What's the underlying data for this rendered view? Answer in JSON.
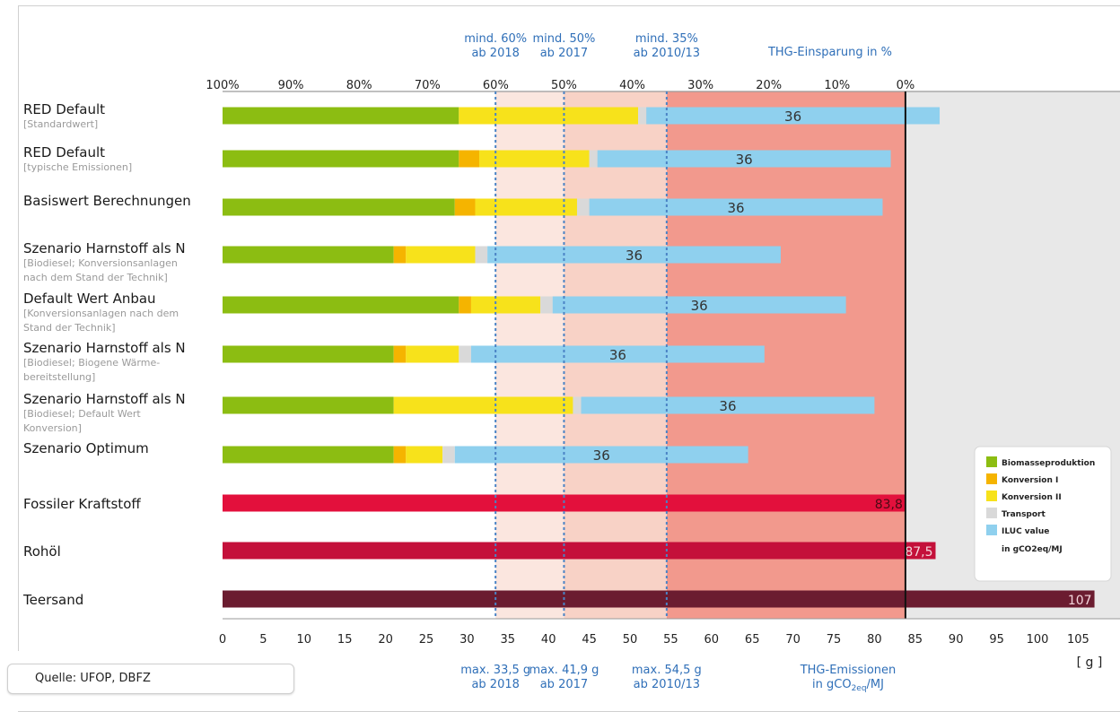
{
  "chart_data": {
    "type": "bar",
    "orientation": "horizontal",
    "stacked": true,
    "x_axis_label": "THG-Emissionen in gCO2eq/MJ",
    "x_unit_label": "[ g ]",
    "x_ticks": [
      "0",
      "5",
      "10",
      "15",
      "20",
      "25",
      "30",
      "35",
      "40",
      "45",
      "50",
      "55",
      "60",
      "65",
      "70",
      "75",
      "80",
      "85",
      "90",
      "95",
      "100",
      "105"
    ],
    "xlim": [
      0,
      110
    ],
    "top_axis_label": "THG-Einsparung in %",
    "top_ticks": [
      {
        "label": "100%",
        "g": 0
      },
      {
        "label": "90%",
        "g": 8.38
      },
      {
        "label": "80%",
        "g": 16.76
      },
      {
        "label": "70%",
        "g": 25.14
      },
      {
        "label": "60%",
        "g": 33.52
      },
      {
        "label": "50%",
        "g": 41.9
      },
      {
        "label": "40%",
        "g": 50.28
      },
      {
        "label": "30%",
        "g": 58.66
      },
      {
        "label": "20%",
        "g": 67.04
      },
      {
        "label": "10%",
        "g": 75.42
      },
      {
        "label": "0%",
        "g": 83.8
      }
    ],
    "thresholds": [
      {
        "g": 33.5,
        "top": [
          "mind. 60%",
          "ab 2018"
        ],
        "bottom": [
          "max. 33,5 g",
          "ab 2018"
        ]
      },
      {
        "g": 41.9,
        "top": [
          "mind. 50%",
          "ab 2017"
        ],
        "bottom": [
          "max. 41,9 g",
          "ab 2017"
        ]
      },
      {
        "g": 54.5,
        "top": [
          "mind. 35%",
          "ab 2010/13"
        ],
        "bottom": [
          "max. 54,5 g",
          "ab 2010/13"
        ]
      }
    ],
    "fossil_reference": 83.8,
    "series_names": [
      "Biomasseproduktion",
      "Konversion I",
      "Konversion II",
      "Transport",
      "ILUC value"
    ],
    "series_colors": [
      "#8cbd12",
      "#f5b400",
      "#f7e21b",
      "#d9d9d9",
      "#8fd0ee"
    ],
    "legend_unit": "in gCO2eq/MJ",
    "legend_position": "bottom-right",
    "categories": [
      {
        "label": "RED Default",
        "sub": [
          "[Standardwert]"
        ],
        "values": [
          29,
          0,
          22,
          1,
          36
        ],
        "value_label": "36"
      },
      {
        "label": "RED Default",
        "sub": [
          "[typische Emissionen]"
        ],
        "values": [
          29,
          2.5,
          13.5,
          1,
          36
        ],
        "value_label": "36"
      },
      {
        "label": "Basiswert Berechnungen",
        "sub": [],
        "values": [
          28.5,
          2.5,
          12.5,
          1.5,
          36
        ],
        "value_label": "36"
      },
      {
        "label": "Szenario Harnstoff als N",
        "sub": [
          "[Biodiesel; Konversionsanlagen",
          "nach dem Stand der Technik]"
        ],
        "values": [
          21,
          1.5,
          8.5,
          1.5,
          36
        ],
        "value_label": "36"
      },
      {
        "label": "Default Wert Anbau",
        "sub": [
          "[Konversionsanlagen nach dem",
          "Stand der Technik]"
        ],
        "values": [
          29,
          1.5,
          8.5,
          1.5,
          36
        ],
        "value_label": "36"
      },
      {
        "label": "Szenario Harnstoff als N",
        "sub": [
          "[Biodiesel; Biogene Wärme-",
          "bereitstellung]"
        ],
        "values": [
          21,
          1.5,
          6.5,
          1.5,
          36
        ],
        "value_label": "36"
      },
      {
        "label": "Szenario Harnstoff als N",
        "sub": [
          "[Biodiesel; Default Wert",
          "Konversion]"
        ],
        "values": [
          21,
          0,
          22,
          1,
          36
        ],
        "value_label": "36"
      },
      {
        "label": "Szenario Optimum",
        "sub": [],
        "values": [
          21,
          1.5,
          4.5,
          1.5,
          36
        ],
        "value_label": "36"
      }
    ],
    "fossil_bars": [
      {
        "label": "Fossiler Kraftstoff",
        "value": 83.8,
        "value_label": "83,8",
        "color": "#e3103c"
      },
      {
        "label": "Rohöl",
        "value": 87.5,
        "value_label": "87,5",
        "color": "#c4103a"
      },
      {
        "label": "Teersand",
        "value": 107,
        "value_label": "107",
        "color": "#6b1c30"
      }
    ],
    "zone_colors": [
      "#fbe6df",
      "#f8d2c6",
      "#f2998d",
      "#e8e8e8"
    ]
  },
  "source": "Quelle: UFOP, DBFZ"
}
